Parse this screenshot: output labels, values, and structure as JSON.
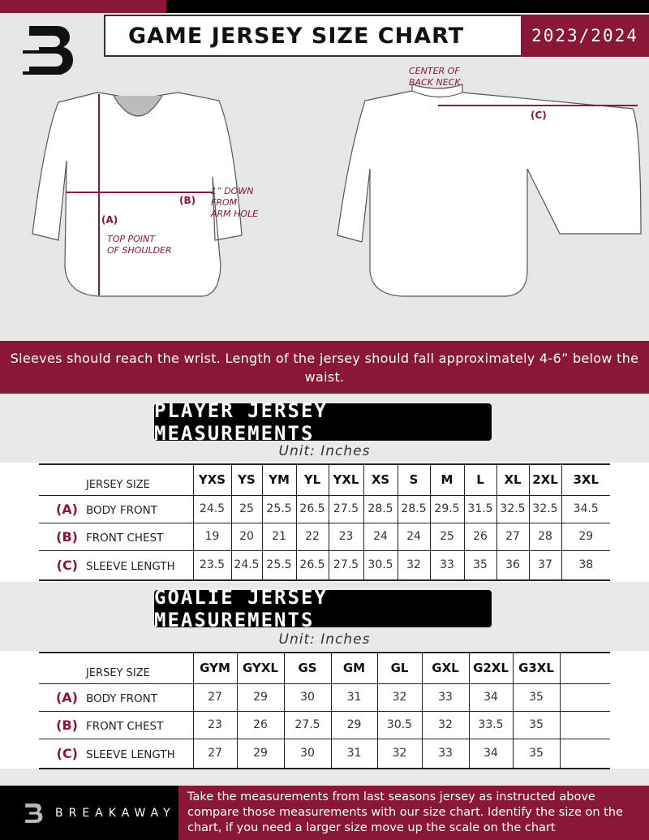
{
  "header": {
    "title": "GAME JERSEY SIZE CHART",
    "season": "2023/2024"
  },
  "diagram": {
    "label_a": "(A)",
    "label_b": "(B)",
    "label_c": "(C)",
    "note_a": [
      "TOP POINT",
      "OF SHOULDER"
    ],
    "note_b": [
      "1” DOWN",
      "FROM",
      "ARM HOLE"
    ],
    "note_c": [
      "CENTER OF",
      "BACK NECK"
    ]
  },
  "instructions": "Sleeves should reach the wrist. Length of the jersey should fall approximately 4-6” below the waist.",
  "player": {
    "heading": "PLAYER JERSEY MEASUREMENTS",
    "unit": "Unit: Inches",
    "header_label": "JERSEY SIZE",
    "sizes": [
      "YXS",
      "YS",
      "YM",
      "YL",
      "YXL",
      "XS",
      "S",
      "M",
      "L",
      "XL",
      "2XL",
      "3XL"
    ],
    "rows": [
      {
        "letter": "(A)",
        "label": "BODY FRONT",
        "values": [
          "24.5",
          "25",
          "25.5",
          "26.5",
          "27.5",
          "28.5",
          "28.5",
          "29.5",
          "31.5",
          "32.5",
          "32.5",
          "34.5"
        ]
      },
      {
        "letter": "(B)",
        "label": "FRONT CHEST",
        "values": [
          "19",
          "20",
          "21",
          "22",
          "23",
          "24",
          "24",
          "25",
          "26",
          "27",
          "28",
          "29"
        ]
      },
      {
        "letter": "(C)",
        "label": "SLEEVE LENGTH",
        "values": [
          "23.5",
          "24.5",
          "25.5",
          "26.5",
          "27.5",
          "30.5",
          "32",
          "33",
          "35",
          "36",
          "37",
          "38"
        ]
      }
    ]
  },
  "goalie": {
    "heading": "GOALIE JERSEY MEASUREMENTS",
    "unit": "Unit: Inches",
    "header_label": "JERSEY SIZE",
    "sizes": [
      "GYM",
      "GYXL",
      "GS",
      "GM",
      "GL",
      "GXL",
      "G2XL",
      "G3XL",
      ""
    ],
    "rows": [
      {
        "letter": "(A)",
        "label": "BODY FRONT",
        "values": [
          "27",
          "29",
          "30",
          "31",
          "32",
          "33",
          "34",
          "35",
          ""
        ]
      },
      {
        "letter": "(B)",
        "label": "FRONT CHEST",
        "values": [
          "23",
          "26",
          "27.5",
          "29",
          "30.5",
          "32",
          "33.5",
          "35",
          ""
        ]
      },
      {
        "letter": "(C)",
        "label": "SLEEVE LENGTH",
        "values": [
          "27",
          "29",
          "30",
          "31",
          "32",
          "33",
          "34",
          "35",
          ""
        ]
      }
    ]
  },
  "footer": {
    "brand": "BREAKAWAY",
    "text": "Take the measurements from last seasons jersey as instructed above compare those measurements  with our size chart. Identify the size on the chart, if you need a larger size move up the scale on the chart"
  },
  "colors": {
    "accent": "#8a1738",
    "dark": "#000000",
    "background": "#e6e6e7"
  }
}
